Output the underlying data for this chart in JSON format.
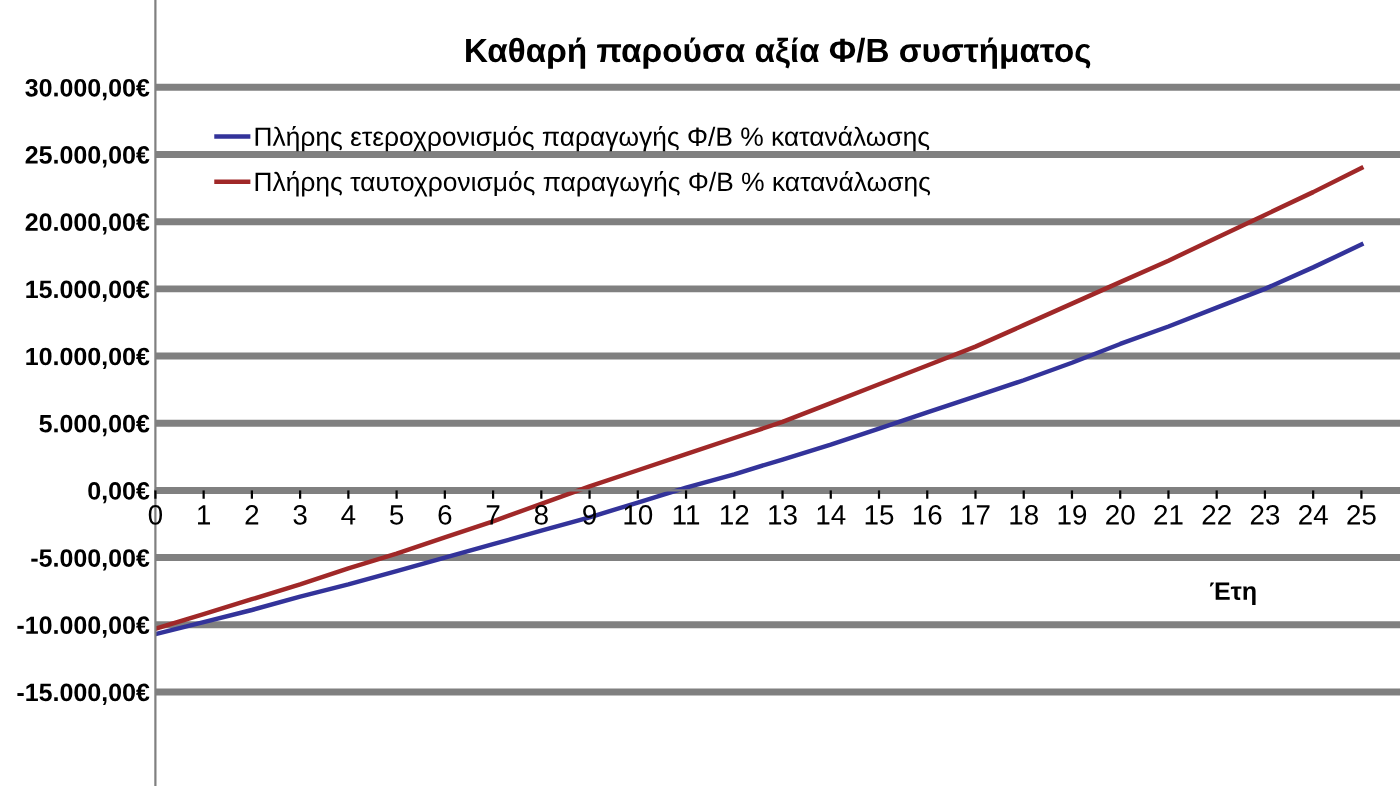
{
  "chart_data": {
    "type": "line",
    "title": "Καθαρή παρούσα αξία Φ/Β συστήματος",
    "xlabel": "Έτη",
    "x": [
      0,
      1,
      2,
      3,
      4,
      5,
      6,
      7,
      8,
      9,
      10,
      11,
      12,
      13,
      14,
      15,
      16,
      17,
      18,
      19,
      20,
      21,
      22,
      23,
      24,
      25
    ],
    "series": [
      {
        "name": "Πλήρης ετεροχρονισμός παραγωγής Φ/Β % κατανάλωσης",
        "color": "#33339a",
        "values": [
          -10700,
          -9800,
          -8900,
          -7900,
          -7000,
          -6000,
          -5000,
          -4000,
          -3000,
          -2000,
          -900,
          200,
          1200,
          2300,
          3400,
          4600,
          5800,
          7000,
          8200,
          9500,
          10900,
          12200,
          13600,
          15000,
          16600,
          18300
        ]
      },
      {
        "name": "Πλήρης ταυτοχρονισμός παραγωγής Φ/Β % κατανάλωσης",
        "color": "#a02828",
        "values": [
          -10300,
          -9200,
          -8100,
          -7000,
          -5800,
          -4700,
          -3500,
          -2300,
          -1000,
          300,
          1500,
          2700,
          3900,
          5100,
          6500,
          7900,
          9300,
          10700,
          12300,
          13900,
          15500,
          17100,
          18800,
          20500,
          22200,
          24000
        ]
      }
    ],
    "xlim": [
      0,
      25.8
    ],
    "xticks": [
      0,
      1,
      2,
      3,
      4,
      5,
      6,
      7,
      8,
      9,
      10,
      11,
      12,
      13,
      14,
      15,
      16,
      17,
      18,
      19,
      20,
      21,
      22,
      23,
      24,
      25
    ],
    "ylim": [
      -22000,
      36500
    ],
    "yticks": [
      {
        "value": -15000,
        "label": "-15.000,00€"
      },
      {
        "value": -10000,
        "label": "-10.000,00€"
      },
      {
        "value": -5000,
        "label": "-5.000,00€"
      },
      {
        "value": 0,
        "label": "0,00€"
      },
      {
        "value": 5000,
        "label": "5.000,00€"
      },
      {
        "value": 10000,
        "label": "10.000,00€"
      },
      {
        "value": 15000,
        "label": "15.000,00€"
      },
      {
        "value": 20000,
        "label": "20.000,00€"
      },
      {
        "value": 25000,
        "label": "25.000,00€"
      },
      {
        "value": 30000,
        "label": "30.000,00€"
      }
    ],
    "grid": "y",
    "legend": "top left",
    "marker": "none",
    "line_style": "solid"
  }
}
